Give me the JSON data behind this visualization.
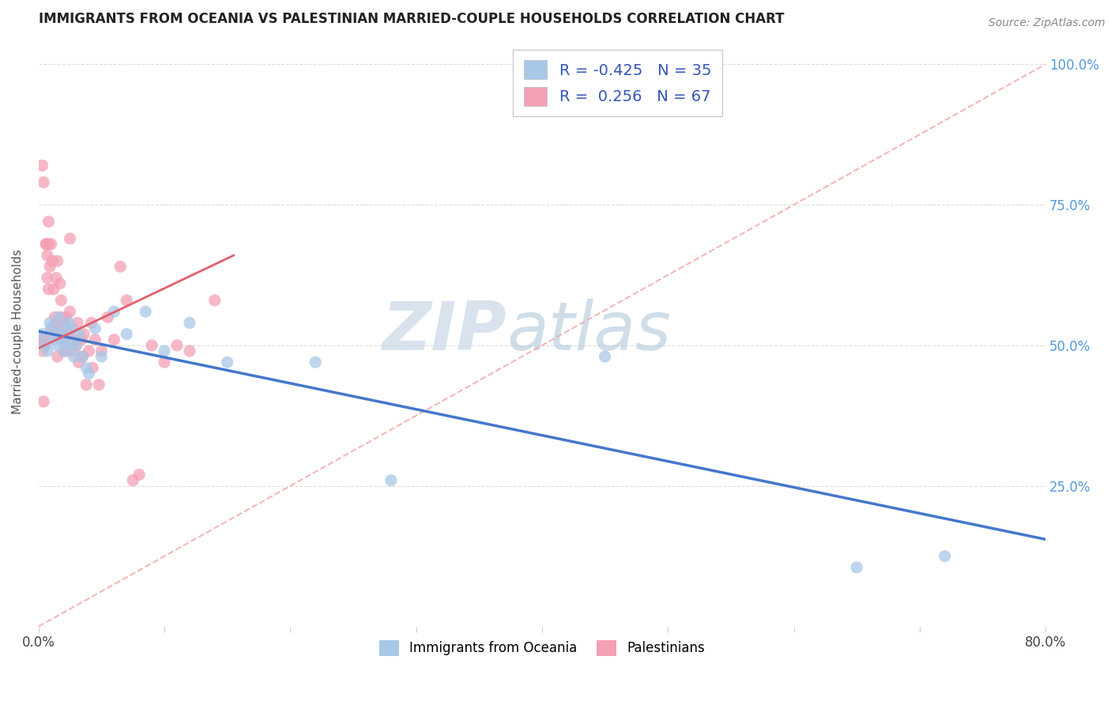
{
  "title": "IMMIGRANTS FROM OCEANIA VS PALESTINIAN MARRIED-COUPLE HOUSEHOLDS CORRELATION CHART",
  "source": "Source: ZipAtlas.com",
  "ylabel": "Married-couple Households",
  "right_yticks": [
    "100.0%",
    "75.0%",
    "50.0%",
    "25.0%"
  ],
  "right_ytick_vals": [
    1.0,
    0.75,
    0.5,
    0.25
  ],
  "legend_blue_r": "-0.425",
  "legend_blue_n": "35",
  "legend_pink_r": "0.256",
  "legend_pink_n": "67",
  "blue_color": "#a8c8e8",
  "pink_color": "#f4a0b5",
  "blue_line_color": "#4477cc",
  "pink_line_color": "#e06070",
  "diag_line_color": "#f0b0b0",
  "watermark_zip": "ZIP",
  "watermark_atlas": "atlas",
  "xmin": 0.0,
  "xmax": 0.8,
  "ymin": 0.0,
  "ymax": 1.05,
  "blue_scatter_x": [
    0.003,
    0.005,
    0.007,
    0.009,
    0.01,
    0.012,
    0.014,
    0.015,
    0.016,
    0.018,
    0.019,
    0.02,
    0.022,
    0.024,
    0.025,
    0.026,
    0.028,
    0.03,
    0.032,
    0.035,
    0.038,
    0.04,
    0.045,
    0.05,
    0.06,
    0.07,
    0.085,
    0.1,
    0.12,
    0.15,
    0.22,
    0.28,
    0.45,
    0.65,
    0.72
  ],
  "blue_scatter_y": [
    0.52,
    0.5,
    0.49,
    0.54,
    0.53,
    0.51,
    0.52,
    0.5,
    0.55,
    0.51,
    0.53,
    0.49,
    0.51,
    0.54,
    0.5,
    0.53,
    0.48,
    0.5,
    0.52,
    0.48,
    0.46,
    0.45,
    0.53,
    0.48,
    0.56,
    0.52,
    0.56,
    0.49,
    0.54,
    0.47,
    0.47,
    0.26,
    0.48,
    0.105,
    0.125
  ],
  "pink_scatter_x": [
    0.002,
    0.003,
    0.004,
    0.005,
    0.005,
    0.006,
    0.007,
    0.008,
    0.008,
    0.009,
    0.01,
    0.01,
    0.011,
    0.012,
    0.013,
    0.014,
    0.015,
    0.015,
    0.016,
    0.017,
    0.018,
    0.018,
    0.019,
    0.02,
    0.02,
    0.021,
    0.022,
    0.022,
    0.024,
    0.025,
    0.026,
    0.027,
    0.028,
    0.028,
    0.03,
    0.031,
    0.032,
    0.034,
    0.035,
    0.036,
    0.038,
    0.04,
    0.042,
    0.043,
    0.045,
    0.048,
    0.05,
    0.055,
    0.06,
    0.065,
    0.07,
    0.075,
    0.08,
    0.09,
    0.1,
    0.11,
    0.12,
    0.14,
    0.002,
    0.003,
    0.004,
    0.006,
    0.007,
    0.008,
    0.01,
    0.015,
    0.025
  ],
  "pink_scatter_y": [
    0.51,
    0.82,
    0.79,
    0.5,
    0.51,
    0.68,
    0.66,
    0.72,
    0.68,
    0.64,
    0.52,
    0.53,
    0.65,
    0.6,
    0.55,
    0.62,
    0.54,
    0.48,
    0.53,
    0.61,
    0.58,
    0.55,
    0.52,
    0.49,
    0.54,
    0.51,
    0.55,
    0.49,
    0.52,
    0.56,
    0.5,
    0.53,
    0.49,
    0.51,
    0.5,
    0.54,
    0.47,
    0.51,
    0.48,
    0.52,
    0.43,
    0.49,
    0.54,
    0.46,
    0.51,
    0.43,
    0.49,
    0.55,
    0.51,
    0.64,
    0.58,
    0.26,
    0.27,
    0.5,
    0.47,
    0.5,
    0.49,
    0.58,
    0.51,
    0.49,
    0.4,
    0.68,
    0.62,
    0.6,
    0.68,
    0.65,
    0.69
  ],
  "blue_line_x0": 0.0,
  "blue_line_x1": 0.8,
  "blue_line_y0": 0.525,
  "blue_line_y1": 0.155,
  "pink_line_x0": 0.0,
  "pink_line_x1": 0.155,
  "pink_line_y0": 0.495,
  "pink_line_y1": 0.66
}
